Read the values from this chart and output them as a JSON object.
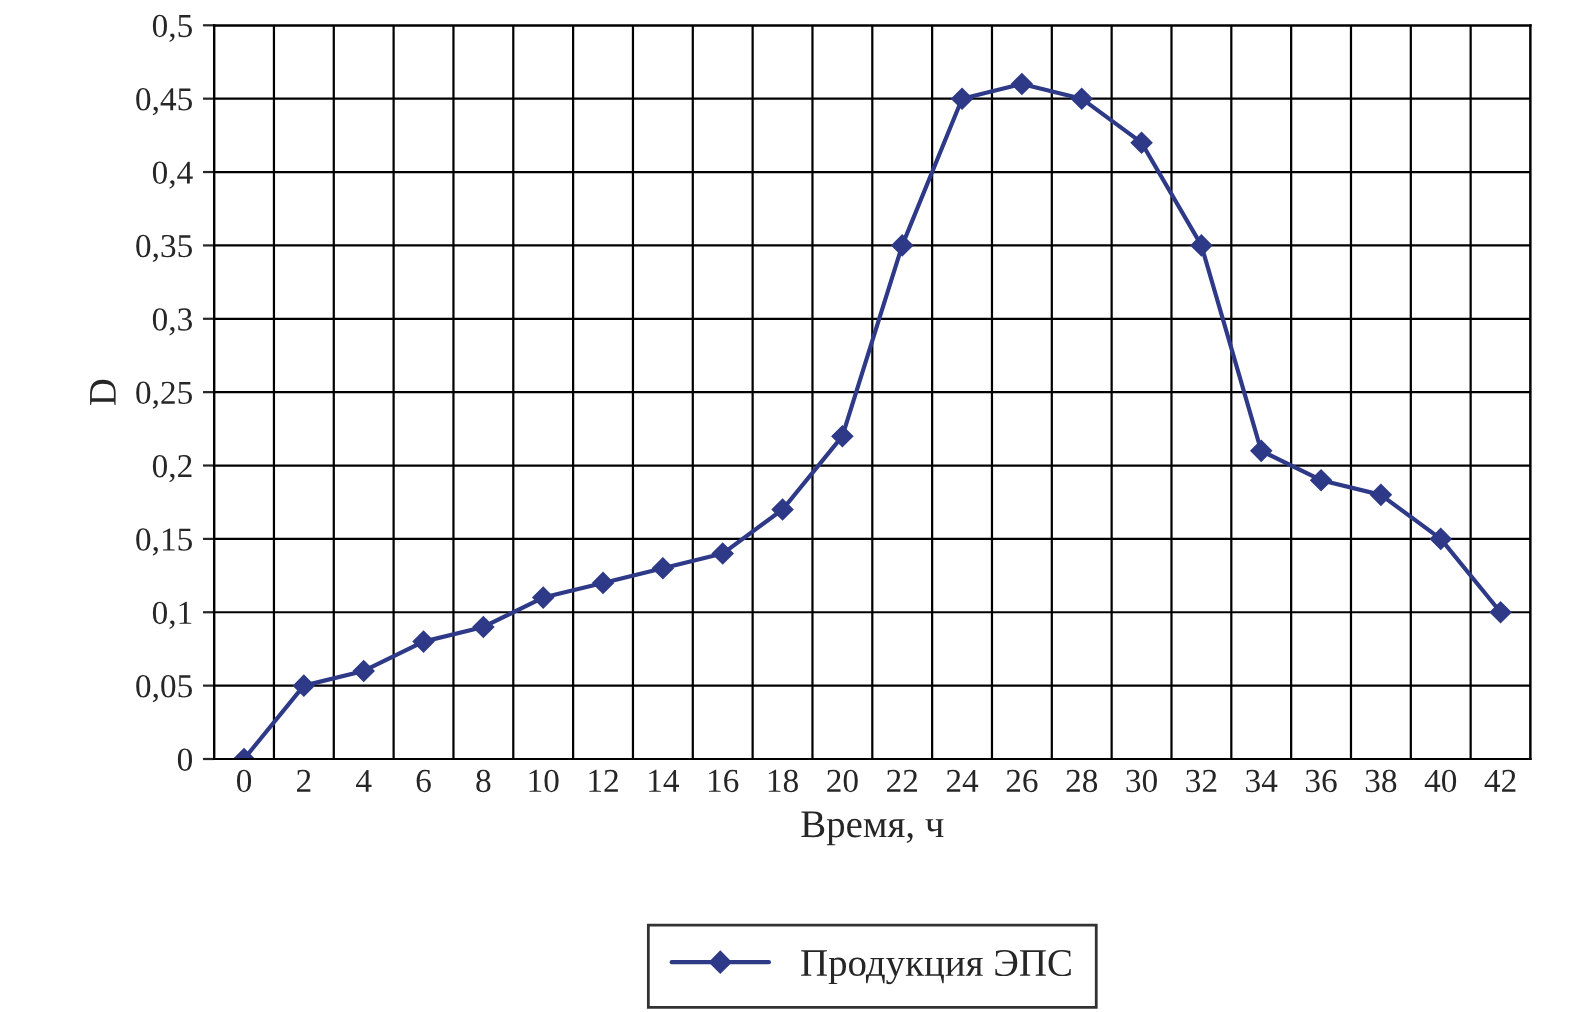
{
  "chart_data": {
    "type": "line",
    "xlabel": "Время, ч",
    "ylabel": "D",
    "categories": [
      "0",
      "2",
      "4",
      "6",
      "8",
      "10",
      "12",
      "14",
      "16",
      "18",
      "20",
      "22",
      "24",
      "26",
      "28",
      "30",
      "32",
      "34",
      "36",
      "38",
      "40",
      "42"
    ],
    "series": [
      {
        "name": "Продукция ЭПС",
        "color": "#2e3a87",
        "values": [
          0,
          0.05,
          0.06,
          0.08,
          0.09,
          0.11,
          0.12,
          0.13,
          0.14,
          0.17,
          0.22,
          0.35,
          0.45,
          0.46,
          0.45,
          0.42,
          0.35,
          0.21,
          0.19,
          0.18,
          0.15,
          0.1
        ]
      }
    ],
    "ylim": [
      0,
      0.5
    ],
    "yticks": [
      {
        "value": 0,
        "label": "0"
      },
      {
        "value": 0.05,
        "label": "0,05"
      },
      {
        "value": 0.1,
        "label": "0,1"
      },
      {
        "value": 0.15,
        "label": "0,15"
      },
      {
        "value": 0.2,
        "label": "0,2"
      },
      {
        "value": 0.25,
        "label": "0,25"
      },
      {
        "value": 0.3,
        "label": "0,3"
      },
      {
        "value": 0.35,
        "label": "0,35"
      },
      {
        "value": 0.4,
        "label": "0,4"
      },
      {
        "value": 0.45,
        "label": "0,45"
      },
      {
        "value": 0.5,
        "label": "0,5"
      }
    ],
    "grid": true,
    "legend": "bottom",
    "marker": "diamond",
    "line_style": "solid"
  }
}
